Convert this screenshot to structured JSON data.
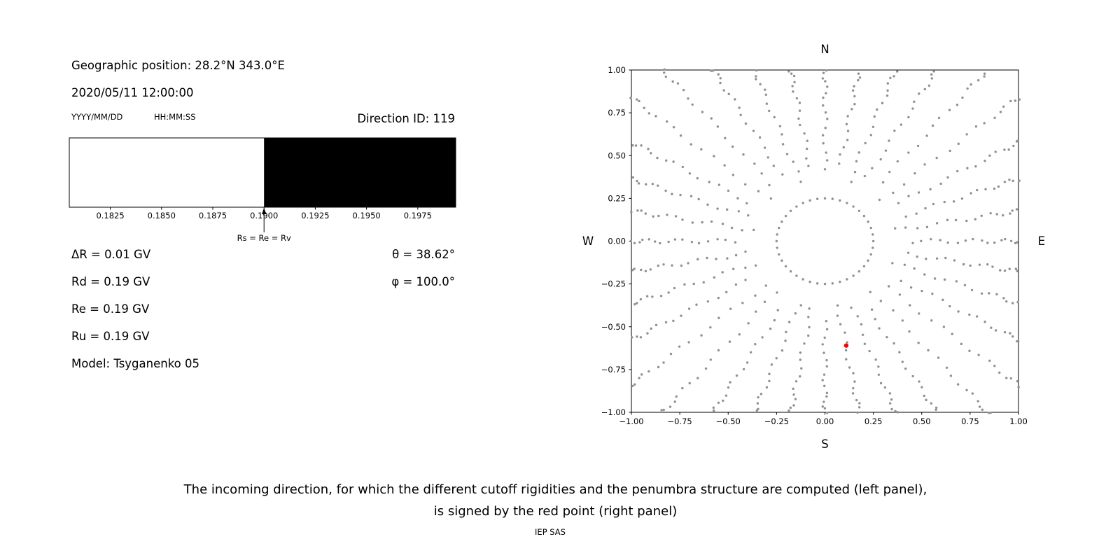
{
  "info_panel": {
    "geo_position": "Geographic position: 28.2°N 343.0°E",
    "datetime": "2020/05/11 12:00:00",
    "date_format_label": "YYYY/MM/DD",
    "time_format_label": "HH:MM:SS",
    "direction_id": "Direction ID: 119",
    "delta_r": "ΔR = 0.01 GV",
    "rd": "Rd = 0.19 GV",
    "re": "Re = 0.19 GV",
    "ru": "Ru = 0.19 GV",
    "model": "Model: Tsyganenko 05",
    "theta": "θ = 38.62°",
    "phi": "φ = 100.0°"
  },
  "caption": {
    "line1": "The incoming direction, for which the different cutoff rigidities and the penumbra structure are computed (left panel),",
    "line2": "is signed by the red point (right panel)",
    "credit": "IEP SAS"
  },
  "chart_data": [
    {
      "type": "bar",
      "name": "penumbra-rigidity-bar",
      "xlim": [
        0.1805,
        0.19935
      ],
      "xtick_labels": [
        "0.1825",
        "0.1850",
        "0.1875",
        "0.1900",
        "0.1925",
        "0.1950",
        "0.1975"
      ],
      "segments": [
        {
          "from": 0.1805,
          "to": 0.19,
          "color": "#ffffff"
        },
        {
          "from": 0.19,
          "to": 0.19935,
          "color": "#000000"
        }
      ],
      "annotation": {
        "x": 0.19,
        "label": "Rs = Re = Rv"
      }
    },
    {
      "type": "scatter",
      "name": "arrival-direction-map",
      "xlim": [
        -1,
        1
      ],
      "ylim": [
        -1,
        1
      ],
      "xtick_labels": [
        "−1.00",
        "−0.75",
        "−0.50",
        "−0.25",
        "0.00",
        "0.25",
        "0.50",
        "0.75",
        "1.00"
      ],
      "ytick_labels": [
        "1.00",
        "0.75",
        "0.50",
        "0.25",
        "0.00",
        "−0.25",
        "−0.50",
        "−0.75",
        "−1.00"
      ],
      "compass": {
        "north": "N",
        "south": "S",
        "west": "W",
        "east": "E"
      },
      "dot_grid": {
        "color": "#909090",
        "ring_radius": 0.25,
        "ring_count": 40,
        "spoke_count": 36,
        "spoke_r_start": 0.42,
        "spoke_r_max": 1.35,
        "dots_per_spoke": 20,
        "dot_radius_px": 1.7
      },
      "highlight_point": {
        "x": 0.11,
        "y": -0.61,
        "color": "#ff0000",
        "radius_px": 3.2
      }
    }
  ]
}
